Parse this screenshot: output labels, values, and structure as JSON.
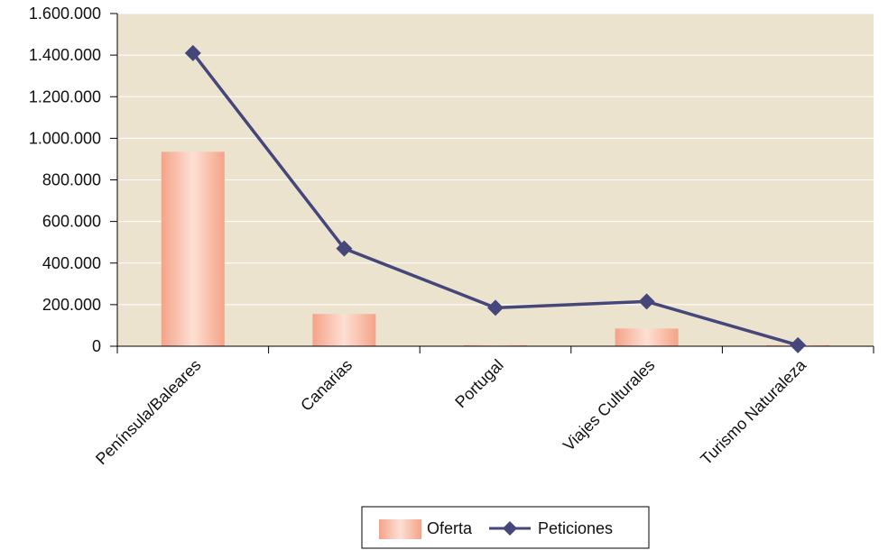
{
  "chart_data": {
    "type": "bar+line",
    "categories": [
      "Península/Baleares",
      "Canarias",
      "Portugal",
      "Viajes Culturales",
      "Turismo Naturaleza"
    ],
    "series": [
      {
        "name": "Oferta",
        "type": "bar",
        "values": [
          935000,
          155000,
          0,
          85000,
          0
        ]
      },
      {
        "name": "Peticiones",
        "type": "line",
        "values": [
          1410000,
          470000,
          185000,
          215000,
          5000
        ]
      }
    ],
    "yticks": [
      "0",
      "200.000",
      "400.000",
      "600.000",
      "800.000",
      "1.000.000",
      "1.200.000",
      "1.400.000",
      "1.600.000"
    ],
    "ylim": [
      0,
      1600000
    ],
    "grid": true,
    "legend_position": "bottom",
    "colors": {
      "plot_bg": "#ECE3CF",
      "grid": "#FFFFFF",
      "bar_edge": "#F4A388",
      "bar_center": "#FDE0D4",
      "line": "#45467A"
    }
  }
}
